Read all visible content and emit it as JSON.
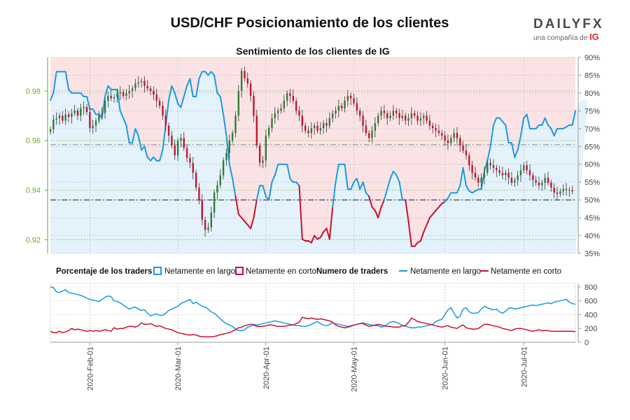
{
  "header": {
    "title": "USD/CHF Posicionamiento de los clientes",
    "subtitle": "Sentimiento de los clientes de IG",
    "logo_text": "DAILYFX",
    "logo_sub": "una compañía de",
    "logo_ig": "IG"
  },
  "colors": {
    "long": "#1a9ae0",
    "short": "#c8102e",
    "long_fill": "#e3f2fb",
    "short_fill": "#fbe3e5",
    "up_candle": "#2e7d32",
    "down_candle": "#c8102e",
    "axis_green": "#6aaa2a"
  },
  "legend": {
    "pct_label": "Porcentaje de los traders",
    "long_label": "Netamente en largo",
    "short_label": "Netamente en corto",
    "num_label": "Numero de traders",
    "long_label2": "Netamente en largo",
    "short_label2": "Netamente en corto"
  },
  "chart_data": {
    "type": "candlestick+line",
    "price_axis": {
      "ticks": [
        "0.98",
        "0.96",
        "0.94",
        "0.92"
      ],
      "tick_values": [
        0.98,
        0.96,
        0.94,
        0.92
      ],
      "range": [
        0.9145,
        0.9935
      ]
    },
    "pct_axis": {
      "ticks": [
        "90%",
        "85%",
        "80%",
        "75%",
        "70%",
        "65%",
        "60%",
        "55%",
        "50%",
        "45%",
        "40%",
        "35%"
      ],
      "range": [
        35,
        90
      ]
    },
    "count_axis": {
      "ticks": [
        "800",
        "600",
        "400",
        "200",
        "0"
      ],
      "tick_values": [
        800,
        600,
        400,
        200,
        0
      ],
      "range": [
        0,
        850
      ]
    },
    "date_ticks": [
      "2020-Feb-01",
      "2020-Mar-01",
      "2020-Apr-01",
      "2020-May-01",
      "2020-Jun-01",
      "2020-Jul-01"
    ],
    "date_tick_index": [
      13,
      42,
      71,
      100,
      130,
      156
    ],
    "n_days": 174,
    "price_close": [
      0.9645,
      0.9685,
      0.969,
      0.97,
      0.968,
      0.9705,
      0.9695,
      0.971,
      0.972,
      0.97,
      0.973,
      0.9735,
      0.9715,
      0.965,
      0.966,
      0.968,
      0.97,
      0.971,
      0.976,
      0.978,
      0.977,
      0.9775,
      0.979,
      0.9795,
      0.978,
      0.979,
      0.98,
      0.981,
      0.983,
      0.9835,
      0.984,
      0.982,
      0.981,
      0.98,
      0.9785,
      0.976,
      0.974,
      0.97,
      0.966,
      0.962,
      0.958,
      0.954,
      0.96,
      0.961,
      0.957,
      0.953,
      0.951,
      0.947,
      0.941,
      0.936,
      0.928,
      0.924,
      0.925,
      0.931,
      0.939,
      0.942,
      0.946,
      0.952,
      0.955,
      0.96,
      0.963,
      0.97,
      0.98,
      0.988,
      0.985,
      0.983,
      0.978,
      0.97,
      0.958,
      0.951,
      0.952,
      0.962,
      0.965,
      0.969,
      0.971,
      0.972,
      0.973,
      0.976,
      0.979,
      0.978,
      0.976,
      0.972,
      0.97,
      0.966,
      0.964,
      0.963,
      0.965,
      0.966,
      0.964,
      0.965,
      0.967,
      0.966,
      0.969,
      0.971,
      0.972,
      0.974,
      0.973,
      0.976,
      0.978,
      0.977,
      0.975,
      0.972,
      0.97,
      0.966,
      0.963,
      0.961,
      0.964,
      0.967,
      0.97,
      0.972,
      0.971,
      0.969,
      0.97,
      0.972,
      0.971,
      0.969,
      0.97,
      0.968,
      0.969,
      0.971,
      0.97,
      0.968,
      0.969,
      0.97,
      0.968,
      0.966,
      0.965,
      0.964,
      0.963,
      0.962,
      0.96,
      0.959,
      0.961,
      0.963,
      0.961,
      0.958,
      0.956,
      0.954,
      0.95,
      0.947,
      0.945,
      0.943,
      0.945,
      0.947,
      0.951,
      0.95,
      0.949,
      0.948,
      0.947,
      0.946,
      0.947,
      0.945,
      0.943,
      0.944,
      0.946,
      0.948,
      0.95,
      0.948,
      0.946,
      0.944,
      0.943,
      0.942,
      0.943,
      0.945,
      0.943,
      0.941,
      0.939,
      0.9385,
      0.9395,
      0.9405,
      0.94,
      0.94,
      0.9395
    ],
    "pct_long": [
      78.0,
      80.0,
      86.0,
      86.0,
      86.0,
      86.0,
      81.0,
      80.0,
      80.0,
      80.0,
      80.0,
      79.0,
      79.0,
      75.5,
      75.5,
      74.0,
      74.0,
      73.0,
      79.0,
      82.0,
      81.0,
      81.0,
      81.0,
      75.0,
      73.0,
      71.0,
      66.0,
      66.0,
      70.0,
      68.0,
      64.0,
      65.0,
      62.0,
      61.0,
      62.0,
      61.0,
      61.0,
      64.0,
      71.0,
      78.0,
      82.0,
      80.0,
      77.0,
      76.0,
      79.0,
      82.0,
      84.0,
      79.0,
      79.0,
      84.0,
      86.0,
      86.0,
      85.0,
      86.0,
      85.0,
      80.0,
      79.0,
      74.0,
      68.0,
      60.0,
      56.0,
      51.0,
      46.0,
      45.0,
      44.0,
      43.0,
      42.0,
      45.0,
      50.0,
      54.0,
      54.0,
      51.0,
      50.0,
      55.0,
      57.0,
      60.0,
      60.0,
      60.0,
      60.0,
      56.0,
      55.0,
      55.0,
      54.0,
      39.0,
      38.5,
      38.5,
      38.0,
      40.0,
      39.0,
      39.5,
      41.0,
      42.0,
      39.0,
      48.0,
      55.0,
      60.0,
      60.0,
      60.0,
      53.0,
      53.0,
      55.0,
      56.0,
      53.0,
      55.0,
      52.0,
      51.0,
      48.0,
      47.0,
      45.0,
      48.0,
      50.0,
      53.0,
      56.0,
      58.0,
      57.0,
      55.0,
      50.0,
      50.0,
      44.0,
      37.0,
      37.0,
      38.0,
      38.5,
      41.0,
      43.0,
      45.0,
      46.0,
      47.0,
      48.0,
      49.0,
      49.5,
      50.5,
      52.0,
      52.0,
      52.0,
      54.0,
      59.0,
      54.0,
      52.5,
      52.0,
      52.5,
      53.0,
      53.0,
      58.0,
      61.0,
      65.0,
      71.0,
      73.0,
      73.0,
      72.0,
      71.0,
      66.0,
      66.0,
      62.0,
      64.0,
      68.0,
      73.0,
      74.0,
      70.0,
      70.0,
      70.0,
      71.0,
      71.0,
      73.0,
      71.0,
      70.0,
      68.0,
      70.0,
      70.0,
      70.0,
      70.5,
      71.0,
      71.0,
      75.0,
      77.0,
      78.0,
      78.0,
      78.0
    ],
    "count_long": [
      800,
      790,
      730,
      720,
      740,
      760,
      720,
      710,
      700,
      690,
      680,
      660,
      640,
      620,
      610,
      600,
      590,
      620,
      650,
      670,
      660,
      600,
      590,
      570,
      540,
      510,
      480,
      500,
      510,
      480,
      460,
      470,
      420,
      380,
      400,
      410,
      390,
      390,
      420,
      460,
      480,
      500,
      520,
      560,
      580,
      600,
      620,
      560,
      580,
      550,
      520,
      510,
      480,
      440,
      420,
      380,
      340,
      300,
      270,
      250,
      230,
      190,
      170,
      170,
      180,
      220,
      230,
      260,
      250,
      260,
      270,
      280,
      290,
      300,
      310,
      300,
      290,
      280,
      270,
      260,
      250,
      240,
      240,
      230,
      230,
      240,
      260,
      280,
      300,
      270,
      250,
      240,
      260,
      280,
      270,
      260,
      250,
      240,
      230,
      240,
      250,
      260,
      270,
      280,
      270,
      260,
      250,
      240,
      240,
      220,
      230,
      260,
      290,
      300,
      290,
      270,
      240,
      230,
      220,
      210,
      210,
      220,
      220,
      230,
      240,
      250,
      260,
      300,
      320,
      330,
      400,
      470,
      500,
      420,
      350,
      380,
      480,
      500,
      440,
      420,
      420,
      430,
      480,
      520,
      500,
      480,
      470,
      480,
      440,
      420,
      450,
      490,
      500,
      480,
      490,
      500,
      510,
      520,
      530,
      540,
      530,
      540,
      550,
      560,
      570,
      560,
      580,
      590,
      600,
      610,
      620,
      580,
      560,
      550
    ],
    "count_short": [
      160,
      140,
      140,
      160,
      140,
      150,
      170,
      200,
      180,
      190,
      180,
      170,
      160,
      170,
      160,
      170,
      160,
      170,
      180,
      170,
      160,
      210,
      190,
      200,
      200,
      220,
      230,
      230,
      220,
      240,
      280,
      260,
      260,
      270,
      250,
      230,
      240,
      220,
      200,
      190,
      180,
      160,
      140,
      130,
      120,
      110,
      105,
      110,
      105,
      90,
      80,
      80,
      80,
      80,
      85,
      95,
      110,
      120,
      130,
      140,
      160,
      180,
      210,
      220,
      240,
      250,
      260,
      250,
      230,
      230,
      230,
      240,
      250,
      250,
      240,
      230,
      230,
      230,
      240,
      250,
      250,
      270,
      290,
      360,
      350,
      340,
      350,
      340,
      330,
      340,
      330,
      320,
      310,
      290,
      250,
      230,
      220,
      210,
      220,
      230,
      250,
      260,
      270,
      270,
      250,
      230,
      240,
      250,
      260,
      250,
      240,
      230,
      230,
      220,
      220,
      220,
      240,
      240,
      290,
      350,
      330,
      300,
      290,
      280,
      270,
      260,
      250,
      240,
      230,
      220,
      230,
      240,
      220,
      210,
      200,
      230,
      250,
      210,
      200,
      190,
      190,
      200,
      230,
      260,
      260,
      250,
      240,
      230,
      220,
      200,
      190,
      180,
      170,
      190,
      200,
      200,
      190,
      180,
      170,
      160,
      170,
      180,
      170,
      170,
      170,
      160,
      160,
      160,
      160,
      160,
      160,
      160,
      160,
      155
    ]
  }
}
